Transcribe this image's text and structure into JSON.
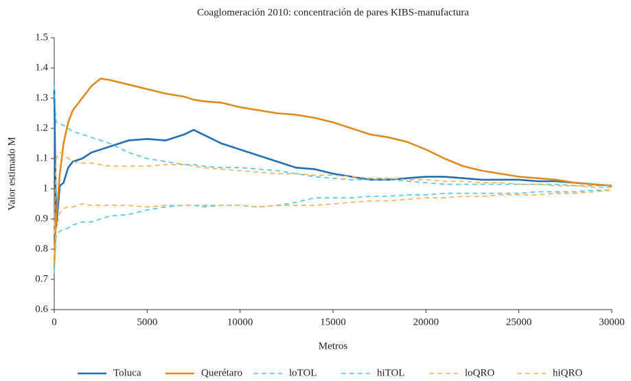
{
  "chart_data": {
    "type": "line",
    "title": "Coaglomeración 2010: concentración de pares KIBS-manufactura",
    "x_label": "Metros",
    "y_label": "Valor estimado M",
    "xlim": [
      0,
      30000
    ],
    "ylim": [
      0.6,
      1.5
    ],
    "xticks": [
      0,
      5000,
      10000,
      15000,
      20000,
      25000,
      30000
    ],
    "yticks": [
      0.6,
      0.7,
      0.8,
      0.9,
      1,
      1.1,
      1.2,
      1.3,
      1.4,
      1.5
    ],
    "grid": false,
    "legend": "bottom",
    "x": [
      0,
      100,
      300,
      500,
      750,
      1000,
      1500,
      2000,
      2500,
      3000,
      4000,
      5000,
      6000,
      7000,
      7500,
      8000,
      9000,
      10000,
      11000,
      12000,
      13000,
      14000,
      15000,
      16000,
      17000,
      18000,
      19000,
      20000,
      21000,
      22000,
      23000,
      24000,
      25000,
      26000,
      27000,
      28000,
      29000,
      30000
    ],
    "series": [
      {
        "name": "Toluca",
        "color": "#1f6fb2",
        "linestyle": "solid",
        "values": [
          1.33,
          0.87,
          1.01,
          1.02,
          1.07,
          1.09,
          1.1,
          1.12,
          1.13,
          1.14,
          1.16,
          1.165,
          1.16,
          1.18,
          1.195,
          1.18,
          1.15,
          1.13,
          1.11,
          1.09,
          1.07,
          1.065,
          1.05,
          1.04,
          1.03,
          1.03,
          1.035,
          1.04,
          1.04,
          1.035,
          1.03,
          1.03,
          1.03,
          1.025,
          1.025,
          1.02,
          1.015,
          1.01
        ]
      },
      {
        "name": "Querétaro",
        "color": "#e08a1e",
        "linestyle": "solid",
        "values": [
          0.75,
          0.9,
          1.05,
          1.15,
          1.22,
          1.26,
          1.3,
          1.34,
          1.365,
          1.36,
          1.345,
          1.33,
          1.315,
          1.305,
          1.295,
          1.29,
          1.285,
          1.27,
          1.26,
          1.25,
          1.245,
          1.235,
          1.22,
          1.2,
          1.18,
          1.17,
          1.155,
          1.13,
          1.1,
          1.075,
          1.06,
          1.05,
          1.04,
          1.035,
          1.03,
          1.02,
          1.015,
          1.01
        ]
      },
      {
        "name": "loTOL",
        "color": "#4cc3ea",
        "linestyle": "dashed",
        "values": [
          0.72,
          0.84,
          0.86,
          0.865,
          0.87,
          0.88,
          0.89,
          0.89,
          0.9,
          0.91,
          0.915,
          0.93,
          0.94,
          0.945,
          0.945,
          0.94,
          0.945,
          0.945,
          0.94,
          0.945,
          0.955,
          0.97,
          0.97,
          0.97,
          0.975,
          0.975,
          0.98,
          0.98,
          0.985,
          0.985,
          0.985,
          0.985,
          0.985,
          0.99,
          0.99,
          0.99,
          0.995,
          0.995
        ]
      },
      {
        "name": "hiTOL",
        "color": "#4cc3ea",
        "linestyle": "dashed",
        "values": [
          1.34,
          1.22,
          1.215,
          1.21,
          1.2,
          1.19,
          1.18,
          1.17,
          1.16,
          1.15,
          1.12,
          1.1,
          1.09,
          1.08,
          1.08,
          1.075,
          1.07,
          1.07,
          1.065,
          1.06,
          1.05,
          1.04,
          1.035,
          1.03,
          1.03,
          1.03,
          1.025,
          1.02,
          1.015,
          1.015,
          1.015,
          1.015,
          1.015,
          1.015,
          1.015,
          1.01,
          1.01,
          1.01
        ]
      },
      {
        "name": "loQRO",
        "color": "#f2b04c",
        "linestyle": "dashed",
        "values": [
          0.75,
          0.87,
          0.92,
          0.935,
          0.94,
          0.94,
          0.95,
          0.945,
          0.945,
          0.945,
          0.945,
          0.94,
          0.945,
          0.945,
          0.945,
          0.945,
          0.945,
          0.945,
          0.94,
          0.945,
          0.945,
          0.945,
          0.95,
          0.955,
          0.96,
          0.96,
          0.965,
          0.97,
          0.97,
          0.975,
          0.975,
          0.98,
          0.98,
          0.98,
          0.985,
          0.985,
          0.99,
          0.995
        ]
      },
      {
        "name": "hiQRO",
        "color": "#f2b04c",
        "linestyle": "dashed",
        "values": [
          0.85,
          1.1,
          1.12,
          1.115,
          1.1,
          1.09,
          1.085,
          1.085,
          1.08,
          1.075,
          1.075,
          1.075,
          1.08,
          1.08,
          1.075,
          1.07,
          1.065,
          1.06,
          1.055,
          1.05,
          1.05,
          1.045,
          1.045,
          1.04,
          1.035,
          1.035,
          1.03,
          1.03,
          1.025,
          1.025,
          1.02,
          1.02,
          1.015,
          1.015,
          1.01,
          1.01,
          1.005,
          1.005
        ]
      }
    ]
  }
}
